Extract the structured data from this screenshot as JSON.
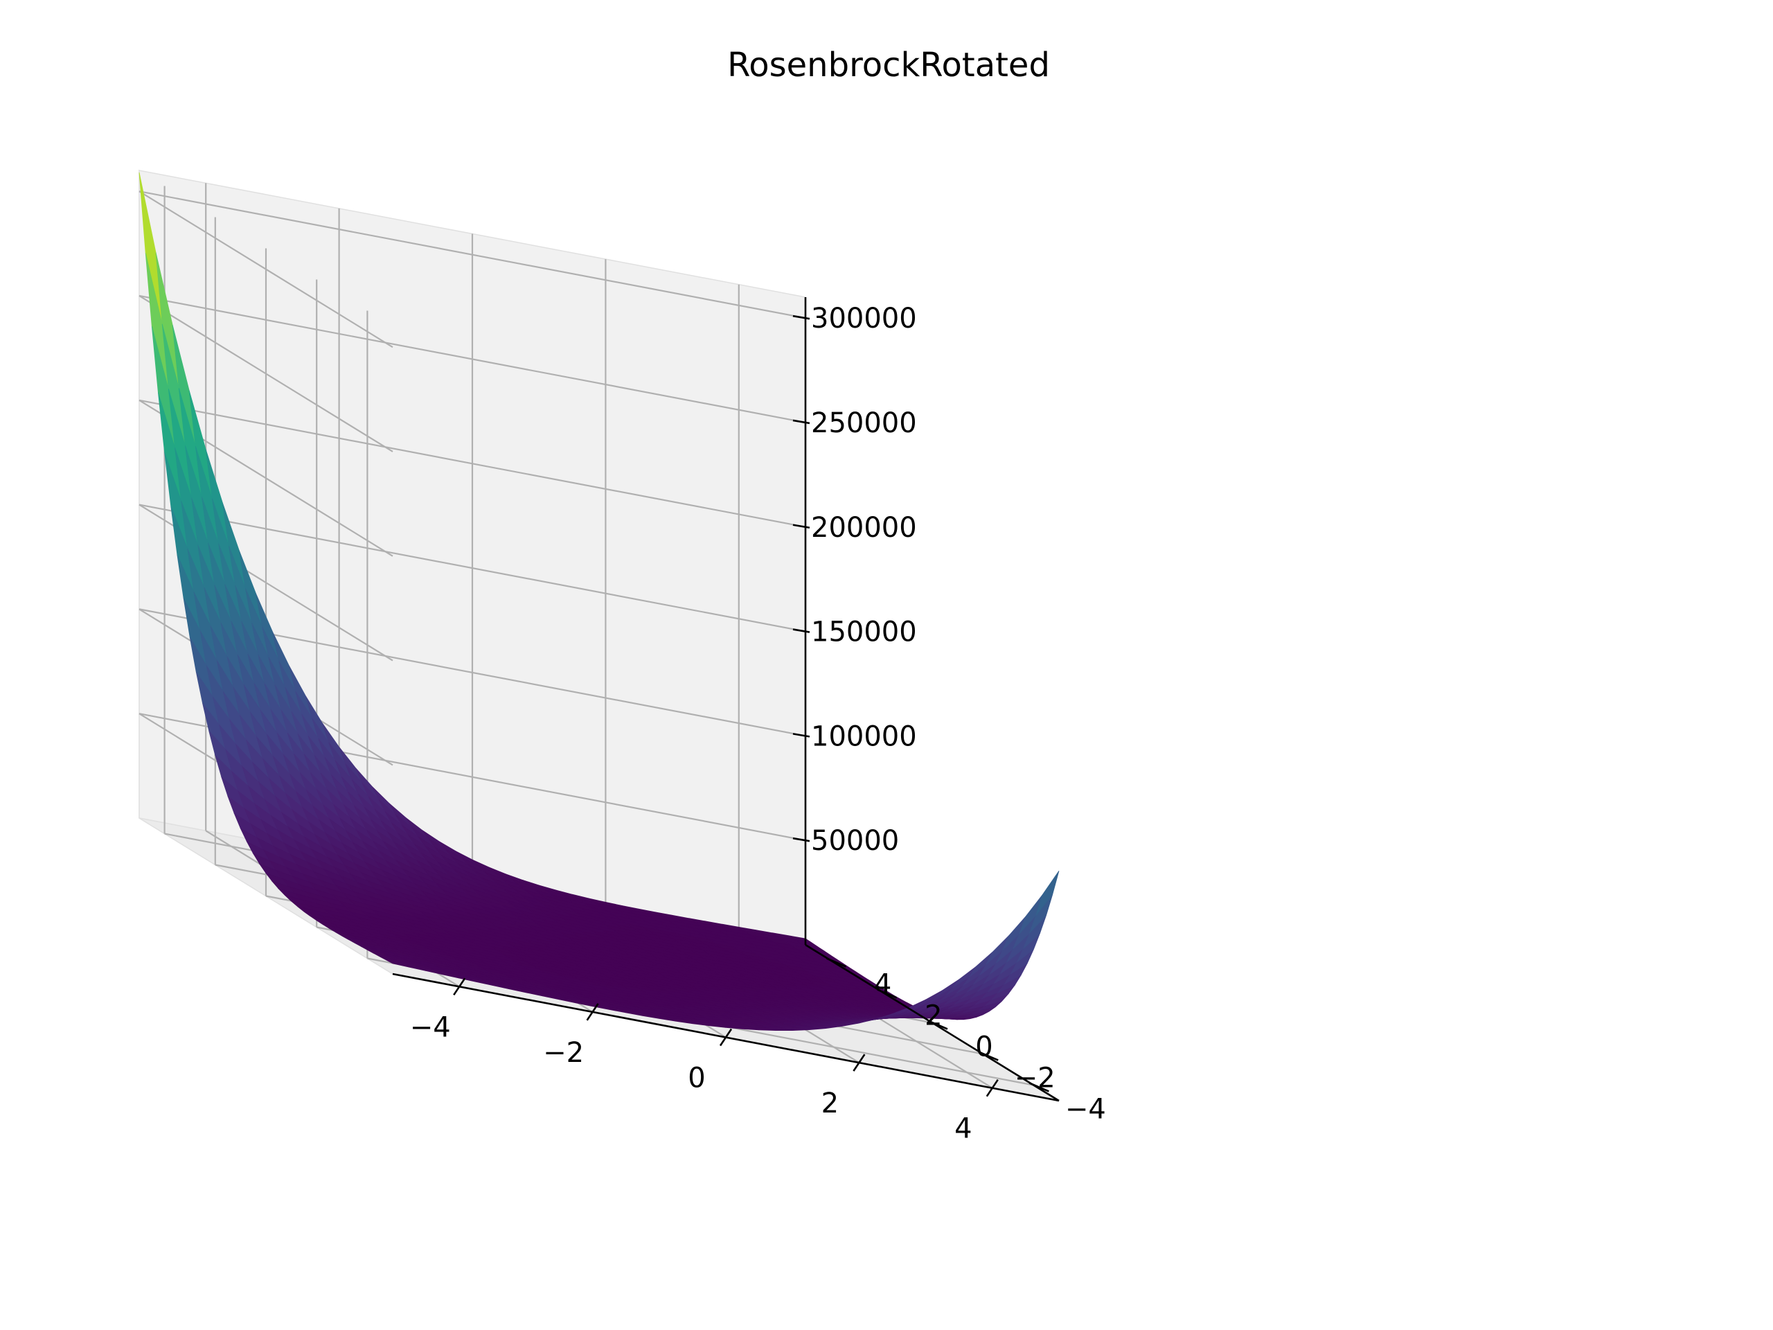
{
  "chart_data": {
    "type": "surface",
    "title": "RosenbrockRotated",
    "xlabel": "",
    "ylabel": "",
    "zlabel": "",
    "x_range": [
      -5,
      5
    ],
    "y_range": [
      -5,
      5
    ],
    "zlim": [
      0,
      310000
    ],
    "x_ticks": [
      -4,
      -2,
      0,
      2,
      4
    ],
    "x_tick_labels": [
      "−4",
      "−2",
      "0",
      "2",
      "4"
    ],
    "y_ticks": [
      -4,
      -2,
      0,
      2,
      4
    ],
    "y_tick_labels": [
      "−4",
      "−2",
      "0",
      "2",
      "4"
    ],
    "z_ticks": [
      50000,
      100000,
      150000,
      200000,
      250000,
      300000
    ],
    "z_tick_labels": [
      "50000",
      "100000",
      "150000",
      "200000",
      "250000",
      "300000"
    ],
    "colormap": "viridis",
    "grid": true,
    "surface_peaks": [
      {
        "x": -5,
        "y": 5,
        "z": 309000
      },
      {
        "x": 5,
        "y": -5,
        "z": 110000
      },
      {
        "x": -5,
        "y": -5,
        "z": 5000
      },
      {
        "x": 5,
        "y": 5,
        "z": 3000
      }
    ]
  }
}
